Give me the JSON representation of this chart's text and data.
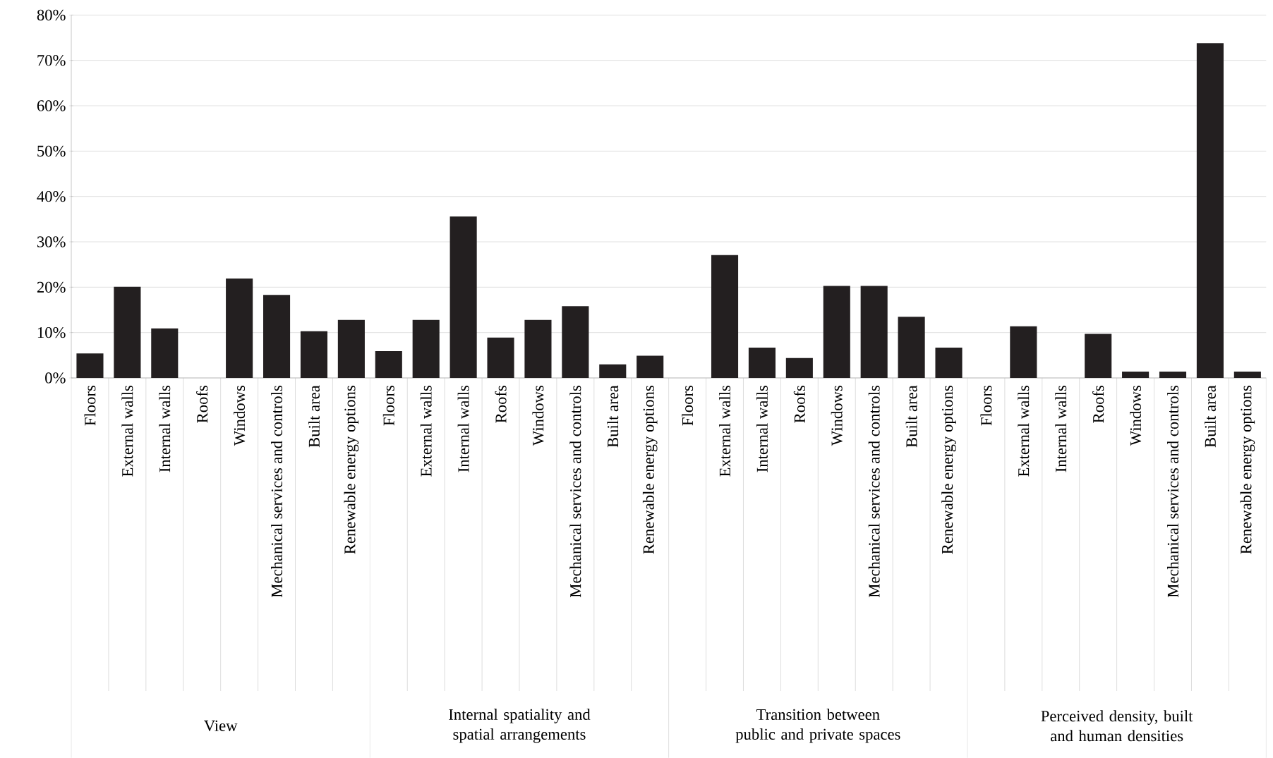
{
  "chart_data": {
    "type": "bar",
    "categories": [
      "Floors",
      "External walls",
      "Internal walls",
      "Roofs",
      "Windows",
      "Mechanical services and controls",
      "Built area",
      "Renewable energy options",
      "Floors",
      "External walls",
      "Internal walls",
      "Roofs",
      "Windows",
      "Mechanical services and controls",
      "Built area",
      "Renewable energy options",
      "Floors",
      "External walls",
      "Internal walls",
      "Roofs",
      "Windows",
      "Mechanical services and controls",
      "Built area",
      "Renewable energy options",
      "Floors",
      "External walls",
      "Internal walls",
      "Roofs",
      "Windows",
      "Mechanical services and controls",
      "Built area",
      "Renewable energy options"
    ],
    "values": [
      5.4,
      20.1,
      10.9,
      0,
      21.9,
      18.3,
      10.3,
      12.8,
      5.9,
      12.8,
      35.6,
      8.9,
      12.8,
      15.8,
      3.0,
      4.9,
      0,
      27.1,
      6.7,
      4.4,
      20.3,
      20.3,
      13.5,
      6.7,
      0,
      11.4,
      0,
      9.7,
      1.4,
      1.4,
      73.8,
      1.4
    ],
    "color": "#231f20",
    "ylim": [
      0,
      80
    ],
    "yticks": [
      {
        "value": 0,
        "label": "0%"
      },
      {
        "value": 10,
        "label": "10%"
      },
      {
        "value": 20,
        "label": "20%"
      },
      {
        "value": 30,
        "label": "30%"
      },
      {
        "value": 40,
        "label": "40%"
      },
      {
        "value": 50,
        "label": "50%"
      },
      {
        "value": 60,
        "label": "60%"
      },
      {
        "value": 70,
        "label": "70%"
      },
      {
        "value": 80,
        "label": "80%"
      }
    ],
    "grid": "y",
    "annotations": [
      "View",
      "Internal spatiality and spatial arrangements",
      "Transition between public and private spaces",
      "Perceived density, built and human densities"
    ]
  }
}
